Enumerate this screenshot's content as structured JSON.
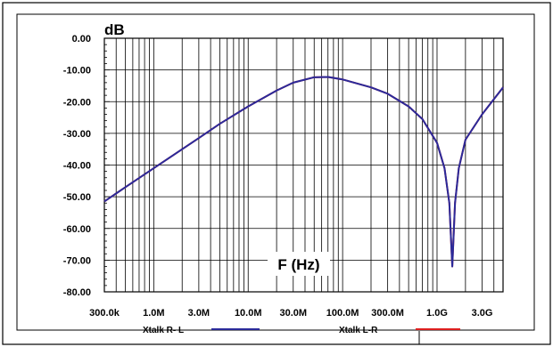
{
  "chart_data": {
    "type": "line",
    "ylabel": "dB",
    "xlabel": "F (Hz)",
    "ylim": [
      -80,
      0
    ],
    "xscale": "log",
    "xlim": [
      300000,
      5000000000
    ],
    "grid": true,
    "legend_position": "bottom",
    "y_ticks": [
      "0.00",
      "-10.00",
      "-20.00",
      "-30.00",
      "-40.00",
      "-50.00",
      "-60.00",
      "-70.00",
      "-80.00"
    ],
    "x_ticks": [
      {
        "value": 300000,
        "label": "300.0k"
      },
      {
        "value": 1000000,
        "label": "1.0M"
      },
      {
        "value": 3000000,
        "label": "3.0M"
      },
      {
        "value": 10000000,
        "label": "10.0M"
      },
      {
        "value": 30000000,
        "label": "30.0M"
      },
      {
        "value": 100000000,
        "label": "100.0M"
      },
      {
        "value": 300000000,
        "label": "300.0M"
      },
      {
        "value": 1000000000,
        "label": "1.0G"
      },
      {
        "value": 3000000000,
        "label": "3.0G"
      }
    ],
    "series": [
      {
        "name": "Xtalk R- L",
        "color": "#2a2a9a",
        "x": [
          300000,
          500000,
          1000000,
          2000000,
          3000000,
          5000000,
          10000000,
          20000000,
          30000000,
          50000000,
          70000000,
          100000000,
          200000000,
          300000000,
          500000000,
          700000000,
          1000000000,
          1200000000,
          1350000000,
          1450000000,
          1550000000,
          1700000000,
          2000000000,
          3000000000,
          5000000000
        ],
        "y": [
          -51.5,
          -47,
          -41,
          -35,
          -31.5,
          -27,
          -21.5,
          -16.5,
          -14,
          -12.3,
          -12.2,
          -13,
          -15.5,
          -17.5,
          -21.5,
          -25.5,
          -33,
          -41,
          -52,
          -72,
          -52,
          -41,
          -32,
          -24,
          -15.5
        ]
      },
      {
        "name": "Xtalk L-R",
        "color": "#dd1f1f",
        "x": [
          300000,
          500000,
          1000000,
          2000000,
          3000000,
          5000000,
          10000000,
          20000000,
          30000000,
          50000000,
          70000000,
          100000000,
          200000000,
          300000000,
          500000000,
          700000000,
          1000000000,
          1200000000,
          1350000000,
          1450000000,
          1550000000,
          1700000000,
          2000000000,
          3000000000,
          5000000000
        ],
        "y": [
          -51.5,
          -47,
          -41,
          -35,
          -31.5,
          -27,
          -21.5,
          -16.5,
          -14,
          -12.3,
          -12.2,
          -13,
          -15.5,
          -17.5,
          -21.5,
          -25.5,
          -33,
          -41,
          -52,
          -72,
          -52,
          -41,
          -32,
          -24,
          -15.5
        ]
      }
    ]
  }
}
